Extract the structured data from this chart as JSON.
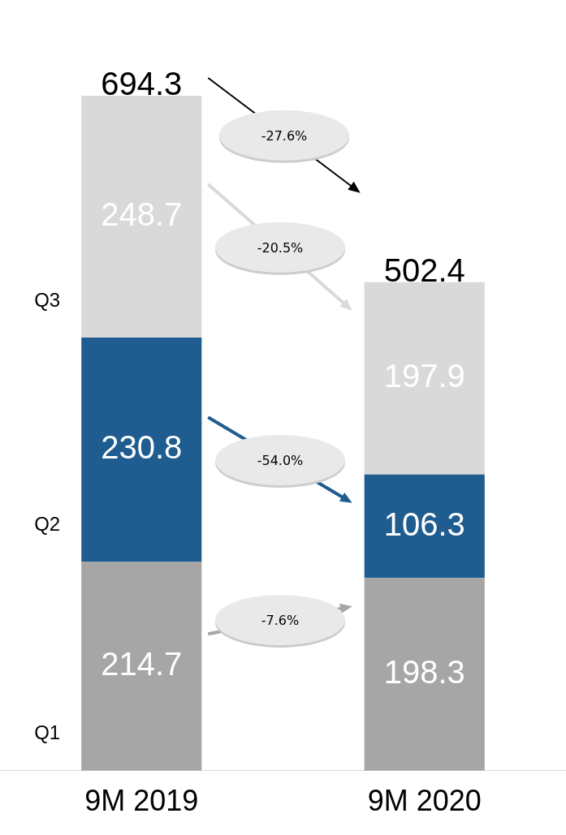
{
  "chart_data": {
    "type": "bar",
    "stacked": true,
    "categories": [
      "9M 2019",
      "9M 2020"
    ],
    "series": [
      {
        "name": "Q1",
        "color": "#a6a6a6",
        "values": [
          214.7,
          198.3
        ]
      },
      {
        "name": "Q2",
        "color": "#1f5c8f",
        "values": [
          230.8,
          106.3
        ]
      },
      {
        "name": "Q3",
        "color": "#d9d9d9",
        "values": [
          248.7,
          197.9
        ]
      }
    ],
    "data_labels": true,
    "totals": [
      "694.3",
      "502.4"
    ],
    "legend": false,
    "annotations": [
      "-27.6%",
      "-20.5%",
      "-54.0%",
      "-7.6%"
    ]
  }
}
